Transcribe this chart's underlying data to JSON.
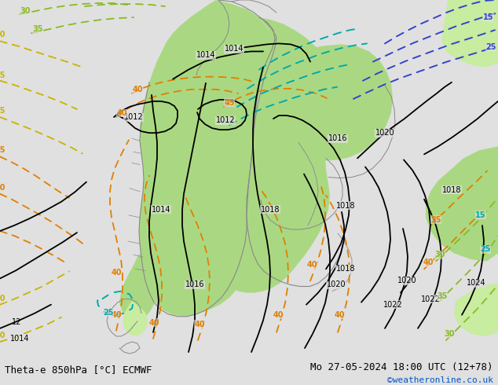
{
  "title_left": "Theta-e 850hPa [°C] ECMWF",
  "title_right": "Mo 27-05-2024 18:00 UTC (12+78)",
  "copyright": "©weatheronline.co.uk",
  "bg_color": "#e0e0e0",
  "green_fill": "#aad882",
  "green_fill_light": "#c8eca0",
  "coast_color": "#888888",
  "black": "#000000",
  "orange": "#e08000",
  "yellow": "#c8b400",
  "ygreen": "#88bb22",
  "cyan": "#00aaaa",
  "blue_dark": "#3344cc",
  "blue_mid": "#4466ee",
  "copyright_color": "#0055cc",
  "bottom_bar": "#c8c8c8"
}
